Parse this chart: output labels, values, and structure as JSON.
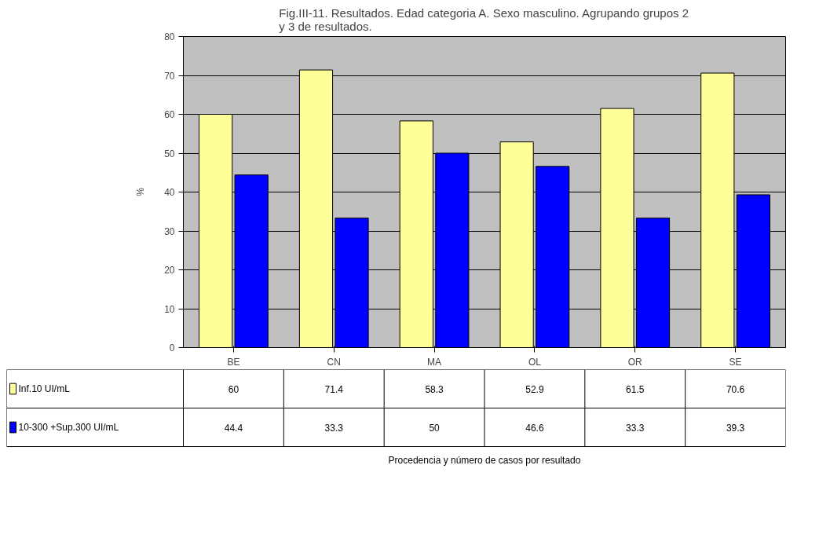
{
  "chart_data": {
    "type": "bar",
    "title": "Fig.III-11. Resultados. Edad categoria A. Sexo masculino. Agrupando grupos 2\ny 3 de resultados.",
    "annotations": [
      "Procedencia y número de casos por resultado"
    ],
    "ylabel": "%",
    "categories": [
      "BE",
      "CN",
      "MA",
      "OL",
      "OR",
      "SE"
    ],
    "series": [
      {
        "name": "Inf.10 UI/mL",
        "color": "#ffff99",
        "values": [
          60,
          71.4,
          58.3,
          52.9,
          61.5,
          70.6
        ]
      },
      {
        "name": "10-300 +Sup.300 UI/mL",
        "color": "#0000ff",
        "values": [
          44.4,
          33.3,
          50,
          46.6,
          33.3,
          39.3
        ]
      }
    ],
    "ylim": [
      0,
      80
    ],
    "yticks": [
      0,
      10,
      20,
      30,
      40,
      50,
      60,
      70,
      80
    ],
    "grid": "y",
    "legend": "bottom left",
    "data_labels": true
  }
}
